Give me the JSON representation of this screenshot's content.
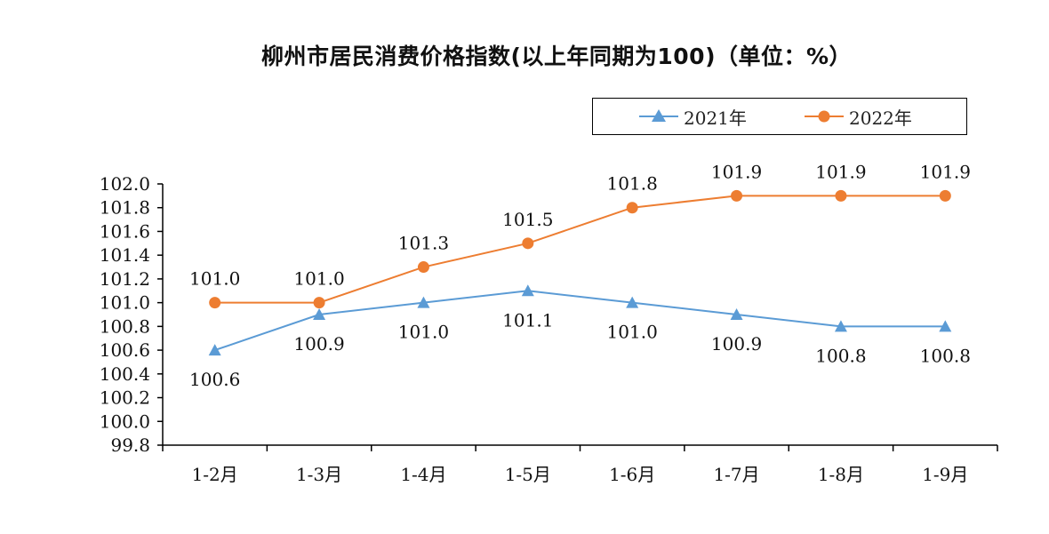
{
  "chart_data": {
    "type": "line",
    "title": "柳州市居民消费价格指数(以上年同期为100)（单位：%）",
    "categories": [
      "1-2月",
      "1-3月",
      "1-4月",
      "1-5月",
      "1-6月",
      "1-7月",
      "1-8月",
      "1-9月"
    ],
    "ylim": [
      99.8,
      102.0
    ],
    "ytick_labels": [
      "102.0",
      "101.8",
      "101.6",
      "101.4",
      "101.2",
      "101.0",
      "100.8",
      "100.6",
      "100.4",
      "100.2",
      "100.0",
      "99.8"
    ],
    "legend_position": "top-right",
    "grid": false,
    "series": [
      {
        "name": "2021年",
        "marker": "triangle",
        "color": "#5B9BD5",
        "values": [
          100.6,
          100.9,
          101.0,
          101.1,
          101.0,
          100.9,
          100.8,
          100.8
        ],
        "labels": [
          "100.6",
          "100.9",
          "101.0",
          "101.1",
          "101.0",
          "100.9",
          "100.8",
          "100.8"
        ]
      },
      {
        "name": "2022年",
        "marker": "circle",
        "color": "#ED7D31",
        "values": [
          101.0,
          101.0,
          101.3,
          101.5,
          101.8,
          101.9,
          101.9,
          101.9
        ],
        "labels": [
          "101.0",
          "101.0",
          "101.3",
          "101.5",
          "101.8",
          "101.9",
          "101.9",
          "101.9"
        ]
      }
    ]
  }
}
